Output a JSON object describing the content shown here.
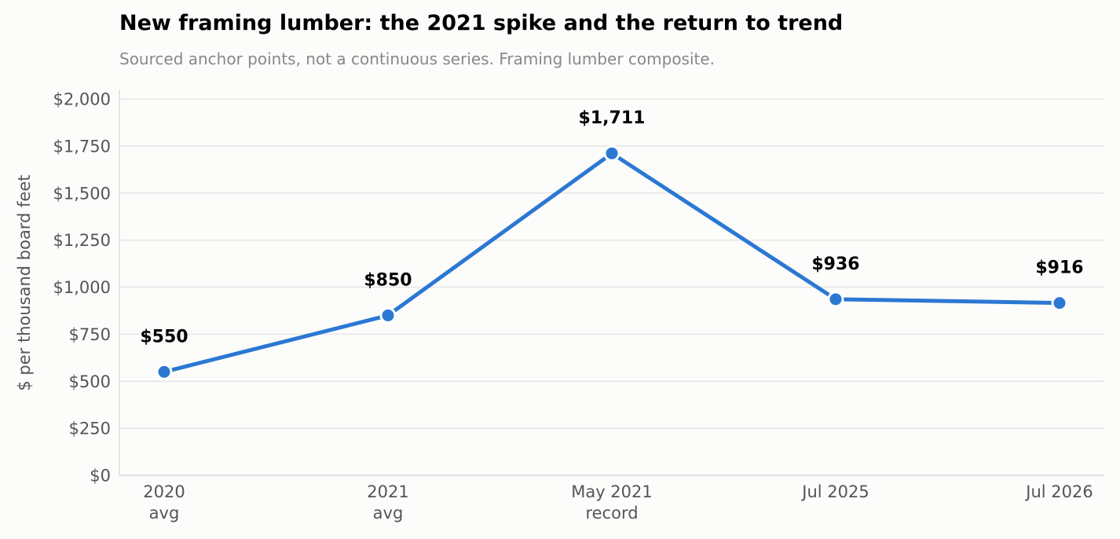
{
  "chart_data": {
    "type": "line",
    "title": "New framing lumber: the 2021 spike and the return to trend",
    "subtitle": "Sourced anchor points, not a continuous series. Framing lumber composite.",
    "xlabel": "",
    "ylabel": "$ per thousand board feet",
    "categories": [
      [
        "2020",
        "avg"
      ],
      [
        "2021",
        "avg"
      ],
      [
        "May 2021",
        "record"
      ],
      [
        "Jul 2025"
      ],
      [
        "Jul 2026"
      ]
    ],
    "values": [
      550,
      850,
      1711,
      936,
      916
    ],
    "data_labels": [
      "$550",
      "$850",
      "$1,711",
      "$936",
      "$916"
    ],
    "ylim": [
      0,
      2000
    ],
    "yticks": [
      0,
      250,
      500,
      750,
      1000,
      1250,
      1500,
      1750,
      2000
    ],
    "ytick_labels": [
      "$0",
      "$250",
      "$500",
      "$750",
      "$1,000",
      "$1,250",
      "$1,500",
      "$1,750",
      "$2,000"
    ],
    "grid": true,
    "legend": "none",
    "colors": {
      "line": "#2b78d3",
      "grid": "#e6e6e6",
      "axis": "#dddddd"
    }
  }
}
